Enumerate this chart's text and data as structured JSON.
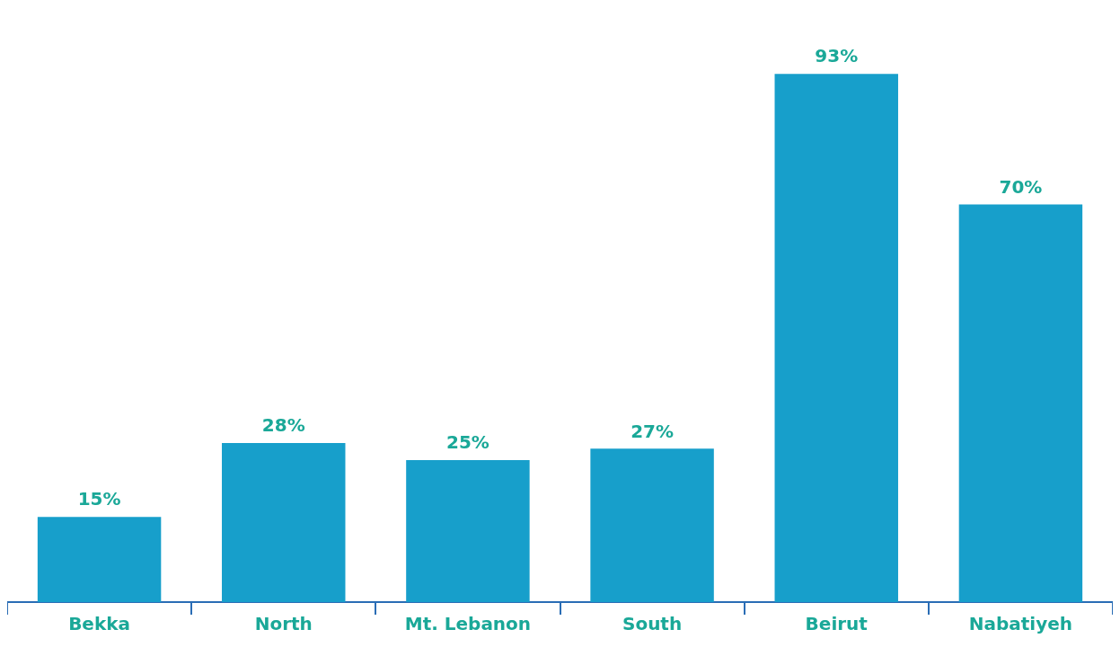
{
  "chart_data": {
    "type": "bar",
    "categories": [
      "Bekka",
      "North",
      "Mt. Lebanon",
      "South",
      "Beirut",
      "Nabatiyeh"
    ],
    "values": [
      15,
      28,
      25,
      27,
      93,
      70
    ],
    "value_labels": [
      "15%",
      "28%",
      "25%",
      "27%",
      "93%",
      "70%"
    ],
    "color": "#179fcb",
    "grid": false,
    "legend": false
  }
}
